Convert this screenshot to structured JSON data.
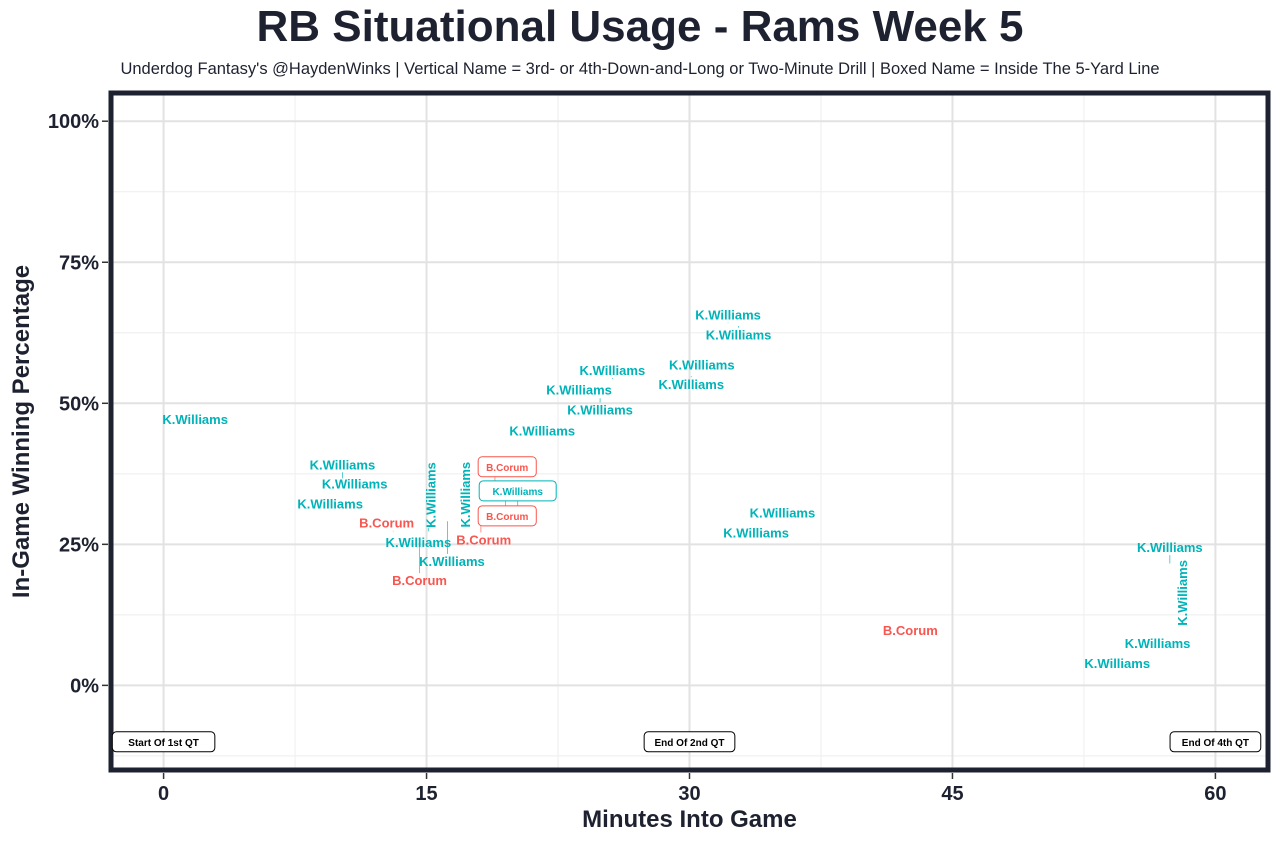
{
  "chart_data": {
    "type": "scatter",
    "title": "RB Situational Usage - Rams Week 5",
    "subtitle": "Underdog Fantasy's @HaydenWinks | Vertical Name = 3rd- or 4th-Down-and-Long or Two-Minute Drill | Boxed Name = Inside The 5-Yard Line",
    "xlabel": "Minutes Into Game",
    "ylabel": "In-Game Winning Percentage",
    "xlim": [
      -3,
      63
    ],
    "ylim": [
      -15,
      105
    ],
    "xticks": [
      0,
      15,
      30,
      45,
      60
    ],
    "xtick_labels": [
      "0",
      "15",
      "30",
      "45",
      "60"
    ],
    "yticks": [
      0,
      25,
      50,
      75,
      100
    ],
    "ytick_labels": [
      "0%",
      "25%",
      "50%",
      "75%",
      "100%"
    ],
    "grid": true,
    "colors": {
      "K.Williams": "#00B3B8",
      "B.Corum": "#F8564F",
      "frame": "#1e2230"
    },
    "points": [
      {
        "x": 1.8,
        "y": 47.2,
        "label": "K.Williams",
        "style": "normal"
      },
      {
        "x": 10.2,
        "y": 36.7,
        "label": "K.Williams",
        "style": "normal"
      },
      {
        "x": 10.9,
        "y": 36.0,
        "label": "K.Williams",
        "style": "normal"
      },
      {
        "x": 9.5,
        "y": 32.1,
        "label": "K.Williams",
        "style": "normal"
      },
      {
        "x": 13.1,
        "y": 27.3,
        "label": "B.Corum",
        "style": "normal"
      },
      {
        "x": 14.6,
        "y": 25.7,
        "label": "B.Corum",
        "style": "normal"
      },
      {
        "x": 15.6,
        "y": 25.2,
        "label": "K.Williams",
        "style": "normal"
      },
      {
        "x": 15.1,
        "y": 27.3,
        "label": "K.Williams",
        "style": "vertical"
      },
      {
        "x": 16.2,
        "y": 29.1,
        "label": "K.Williams",
        "style": "normal"
      },
      {
        "x": 17.1,
        "y": 29.1,
        "label": "K.Williams",
        "style": "vertical"
      },
      {
        "x": 18.1,
        "y": 31.7,
        "label": "B.Corum",
        "style": "normal"
      },
      {
        "x": 18.9,
        "y": 33.7,
        "label": "B.Corum",
        "style": "boxed"
      },
      {
        "x": 19.5,
        "y": 33.7,
        "label": "B.Corum",
        "style": "boxed"
      },
      {
        "x": 20.2,
        "y": 31.2,
        "label": "K.Williams",
        "style": "boxed"
      },
      {
        "x": 21.6,
        "y": 45.2,
        "label": "K.Williams",
        "style": "normal"
      },
      {
        "x": 23.7,
        "y": 52.1,
        "label": "K.Williams",
        "style": "normal"
      },
      {
        "x": 25.6,
        "y": 54.3,
        "label": "K.Williams",
        "style": "normal"
      },
      {
        "x": 24.9,
        "y": 50.9,
        "label": "K.Williams",
        "style": "normal"
      },
      {
        "x": 30.1,
        "y": 54.8,
        "label": "K.Williams",
        "style": "normal"
      },
      {
        "x": 30.7,
        "y": 55.5,
        "label": "K.Williams",
        "style": "normal"
      },
      {
        "x": 32.2,
        "y": 64.2,
        "label": "K.Williams",
        "style": "normal"
      },
      {
        "x": 32.8,
        "y": 63.7,
        "label": "K.Williams",
        "style": "normal"
      },
      {
        "x": 35.3,
        "y": 29.8,
        "label": "K.Williams",
        "style": "normal"
      },
      {
        "x": 33.8,
        "y": 28.0,
        "label": "K.Williams",
        "style": "normal"
      },
      {
        "x": 42.6,
        "y": 9.8,
        "label": "B.Corum",
        "style": "normal"
      },
      {
        "x": 57.4,
        "y": 21.6,
        "label": "K.Williams",
        "style": "normal"
      },
      {
        "x": 58.1,
        "y": 19.3,
        "label": "K.Williams",
        "style": "vertical"
      },
      {
        "x": 56.7,
        "y": 7.1,
        "label": "K.Williams",
        "style": "normal"
      },
      {
        "x": 54.4,
        "y": 4.4,
        "label": "K.Williams",
        "style": "normal"
      }
    ],
    "annotations": [
      {
        "x": 0,
        "y": -10,
        "text": "Start Of 1st QT"
      },
      {
        "x": 30,
        "y": -10,
        "text": "End Of 2nd QT"
      },
      {
        "x": 60,
        "y": -10,
        "text": "End Of 4th QT"
      }
    ]
  }
}
